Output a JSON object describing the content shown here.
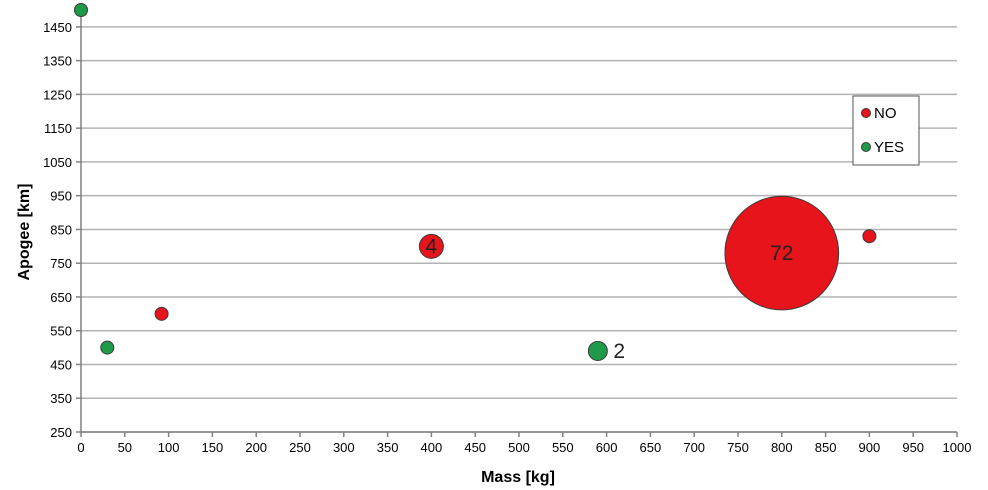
{
  "chart_data": {
    "type": "scatter",
    "title": "",
    "xlabel": "Mass [kg]",
    "ylabel": "Apogee [km]",
    "xlim": [
      0,
      1000
    ],
    "ylim": [
      250,
      1500
    ],
    "x_ticks": [
      0,
      50,
      100,
      150,
      200,
      250,
      300,
      350,
      400,
      450,
      500,
      550,
      600,
      650,
      700,
      750,
      800,
      850,
      900,
      950,
      1000
    ],
    "y_ticks": [
      250,
      350,
      450,
      550,
      650,
      750,
      850,
      950,
      1050,
      1150,
      1250,
      1350,
      1450
    ],
    "grid": "horizontal",
    "legend_position": "top-right",
    "series": [
      {
        "name": "NO",
        "color": "#e8141b",
        "points": [
          {
            "x": 92,
            "y": 600,
            "count": 1,
            "label": ""
          },
          {
            "x": 400,
            "y": 800,
            "count": 4,
            "label": "4"
          },
          {
            "x": 800,
            "y": 780,
            "count": 72,
            "label": "72"
          },
          {
            "x": 900,
            "y": 830,
            "count": 1,
            "label": ""
          }
        ]
      },
      {
        "name": "YES",
        "color": "#1f9a4a",
        "points": [
          {
            "x": 0,
            "y": 1500,
            "count": 1,
            "label": ""
          },
          {
            "x": 30,
            "y": 500,
            "count": 1,
            "label": ""
          },
          {
            "x": 590,
            "y": 490,
            "count": 2,
            "label": "2"
          }
        ]
      }
    ]
  }
}
